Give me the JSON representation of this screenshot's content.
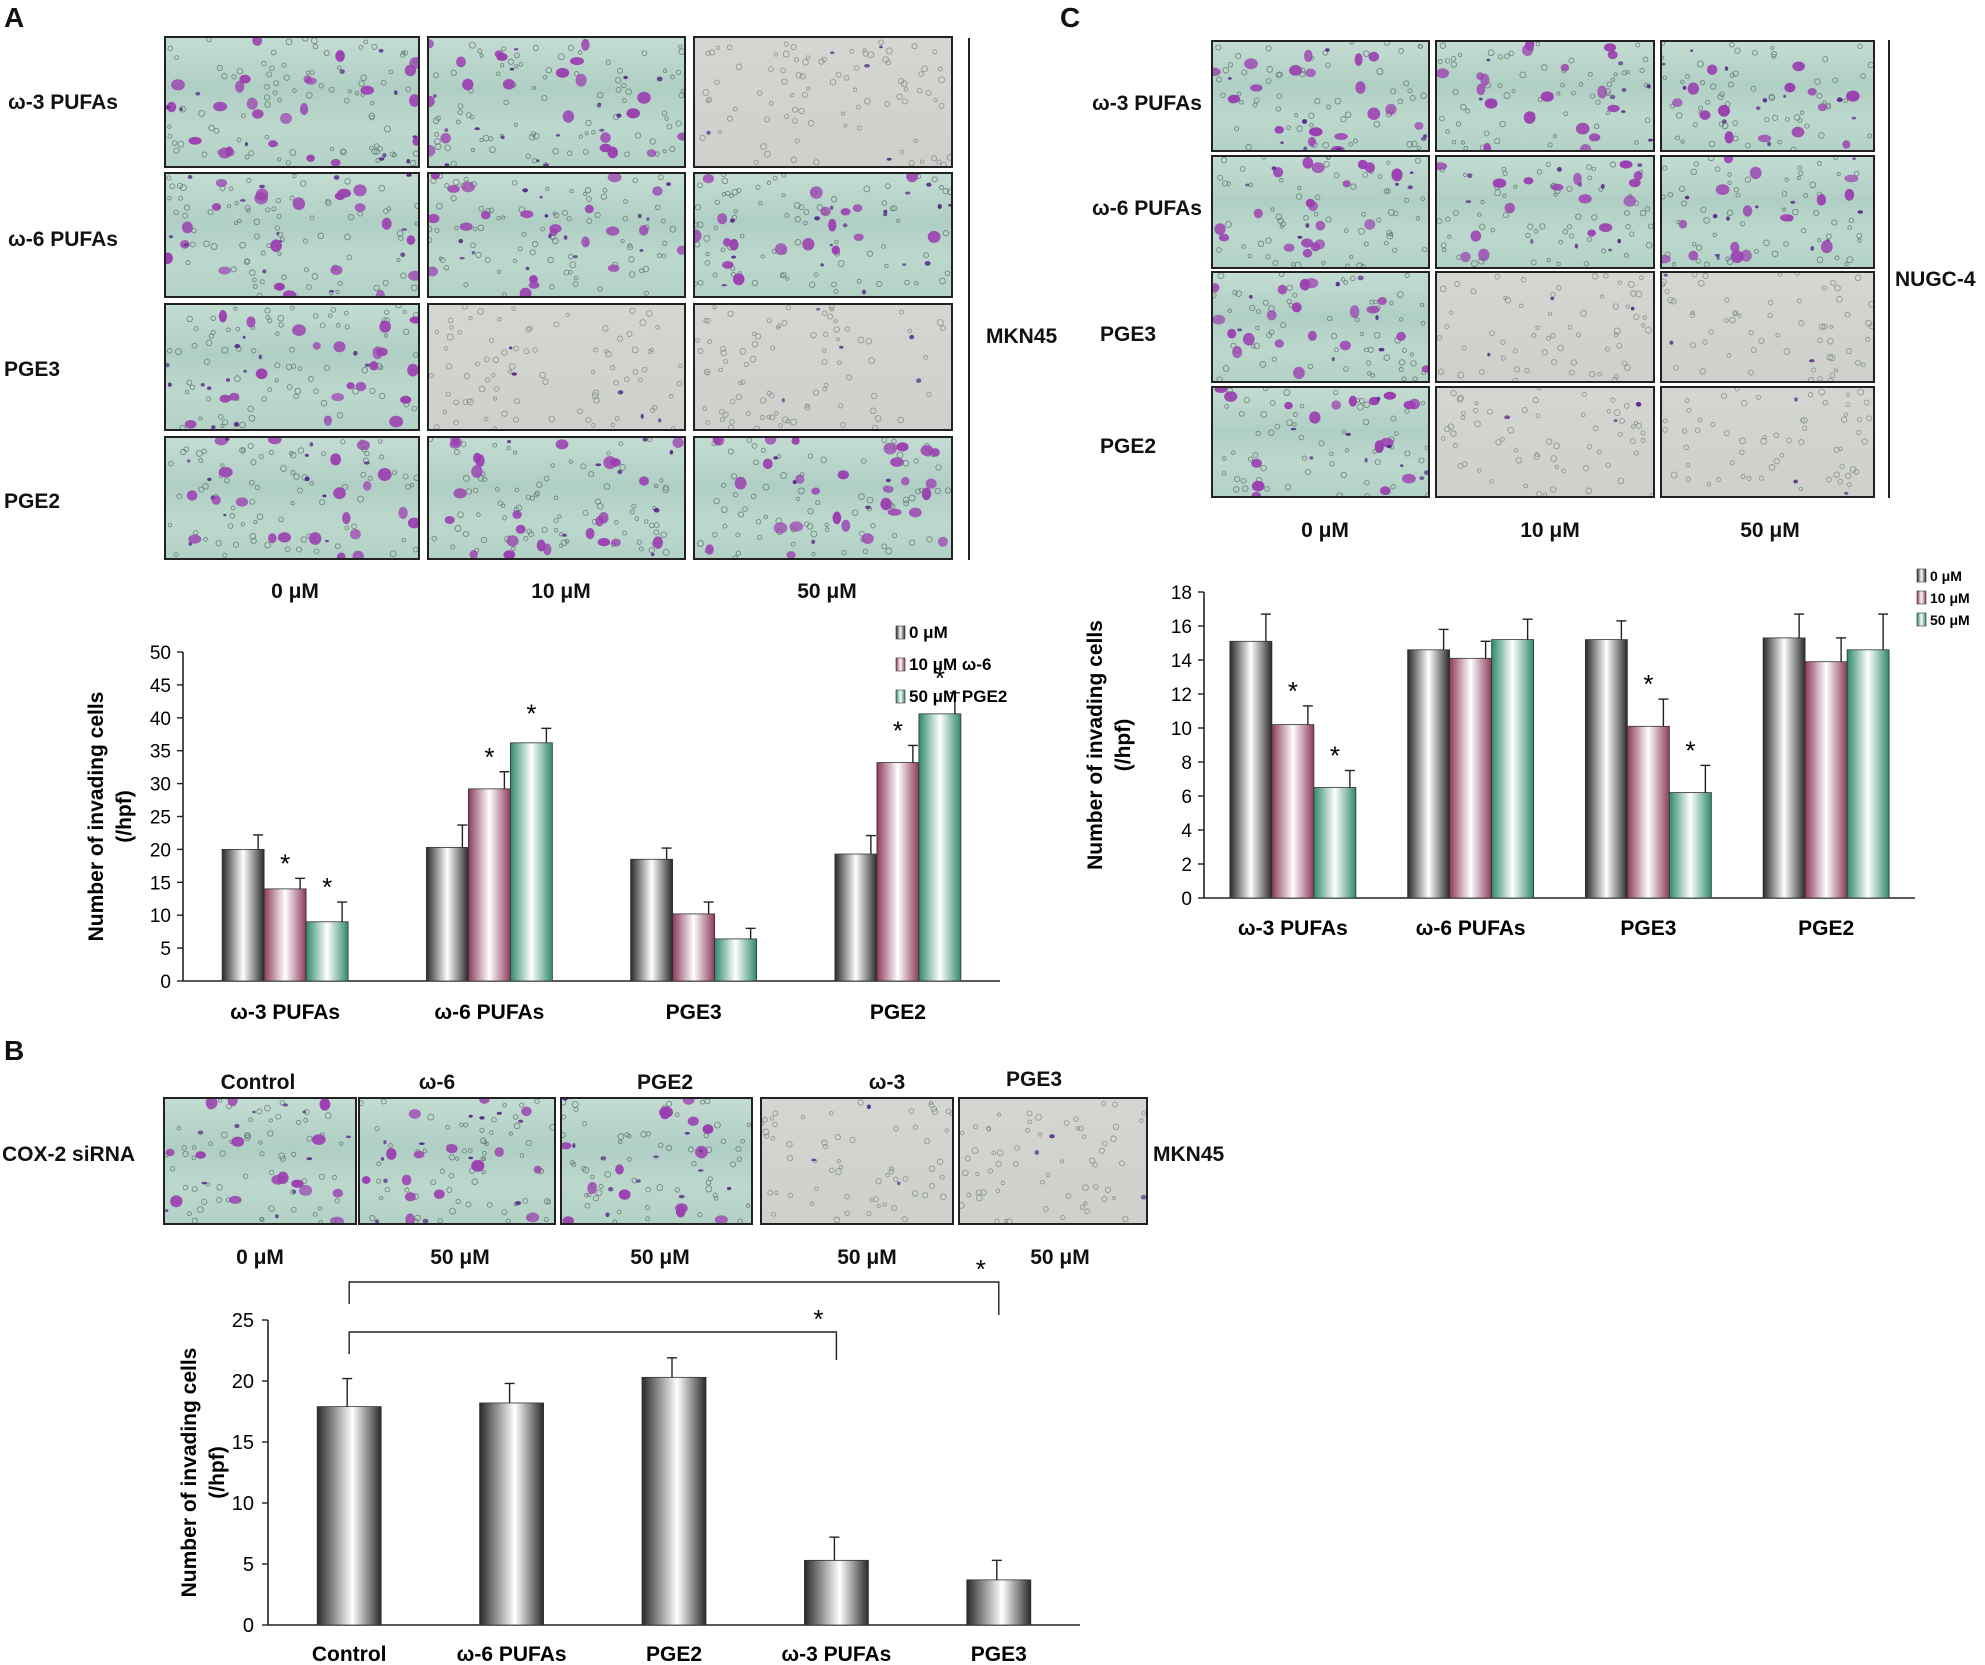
{
  "panels": {
    "A": {
      "letter": "A",
      "row_labels": [
        "ω-3 PUFAs",
        "ω-6 PUFAs",
        "PGE3",
        "PGE2"
      ],
      "col_labels": [
        "0 μM",
        "10 μM",
        "50 μM"
      ],
      "cell_line": "MKN45",
      "staining_levels": [
        [
          2,
          2,
          0
        ],
        [
          2,
          2,
          2
        ],
        [
          2,
          0,
          0
        ],
        [
          2,
          2,
          2
        ]
      ]
    },
    "B": {
      "letter": "B",
      "row_label": "COX-2 siRNA",
      "top_labels": [
        "Control",
        "ω-6",
        "PGE2",
        "ω-3",
        "PGE3"
      ],
      "bottom_labels": [
        "0 μM",
        "50 μM",
        "50 μM",
        "50 μM",
        "50 μM"
      ],
      "cell_line": "MKN45",
      "staining_levels": [
        2,
        2,
        2,
        0,
        0
      ]
    },
    "C": {
      "letter": "C",
      "row_labels": [
        "ω-3 PUFAs",
        "ω-6 PUFAs",
        "PGE3",
        "PGE2"
      ],
      "col_labels": [
        "0 μM",
        "10 μM",
        "50 μM"
      ],
      "cell_line": "NUGC-4",
      "staining_levels": [
        [
          2,
          2,
          2
        ],
        [
          2,
          2,
          2
        ],
        [
          2,
          0,
          0
        ],
        [
          2,
          0,
          0
        ]
      ]
    }
  },
  "chart_data": [
    {
      "id": "A",
      "type": "bar",
      "categories": [
        "ω-3 PUFAs",
        "ω-6 PUFAs",
        "PGE3",
        "PGE2"
      ],
      "series": [
        {
          "name": "0 μM",
          "values": [
            20,
            20.3,
            18.5,
            19.3
          ],
          "errors": [
            2.2,
            3.4,
            1.7,
            2.8
          ],
          "color": "#2a2a2a"
        },
        {
          "name": "10 μM ω-6",
          "values": [
            14,
            29.2,
            10.2,
            33.2
          ],
          "errors": [
            1.6,
            2.6,
            1.8,
            2.6
          ],
          "color": "#8c3a5c"
        },
        {
          "name": "50 μM PGE2",
          "values": [
            9,
            36.2,
            6.4,
            40.6
          ],
          "errors": [
            3.0,
            2.2,
            1.6,
            3.2
          ],
          "color": "#2f8a6a"
        }
      ],
      "significance": [
        [
          false,
          true,
          true
        ],
        [
          false,
          true,
          true
        ],
        [
          false,
          false,
          false
        ],
        [
          false,
          true,
          true
        ]
      ],
      "star": "*",
      "ylabel": "Number of invading cells\n(/hpf)",
      "ylim": [
        0,
        50
      ],
      "yticks": [
        0,
        5,
        10,
        15,
        20,
        25,
        30,
        35,
        40,
        45,
        50
      ],
      "legend": "top-right"
    },
    {
      "id": "C",
      "type": "bar",
      "categories": [
        "ω-3 PUFAs",
        "ω-6 PUFAs",
        "PGE3",
        "PGE2"
      ],
      "series": [
        {
          "name": "0 μM",
          "values": [
            15.1,
            14.6,
            15.2,
            15.3
          ],
          "errors": [
            1.6,
            1.2,
            1.1,
            1.4
          ],
          "color": "#2a2a2a"
        },
        {
          "name": "10 μM",
          "values": [
            10.2,
            14.1,
            10.1,
            13.9
          ],
          "errors": [
            1.1,
            1.0,
            1.6,
            1.4
          ],
          "color": "#8c3a5c"
        },
        {
          "name": "50 μM",
          "values": [
            6.5,
            15.2,
            6.2,
            14.6
          ],
          "errors": [
            1.0,
            1.2,
            1.6,
            2.1
          ],
          "color": "#2f8a6a"
        }
      ],
      "significance": [
        [
          false,
          true,
          true
        ],
        [
          false,
          false,
          false
        ],
        [
          false,
          true,
          true
        ],
        [
          false,
          false,
          false
        ]
      ],
      "star": "*",
      "ylabel": "Number of invading cells\n(/hpf)",
      "ylim": [
        0,
        18
      ],
      "yticks": [
        0,
        2,
        4,
        6,
        8,
        10,
        12,
        14,
        16,
        18
      ],
      "legend": "top-right"
    },
    {
      "id": "B",
      "type": "bar",
      "categories": [
        "Control",
        "ω-6 PUFAs",
        "PGE2",
        "ω-3 PUFAs",
        "PGE3"
      ],
      "values": [
        17.9,
        18.2,
        20.3,
        5.3,
        3.7
      ],
      "errors": [
        2.3,
        1.6,
        1.6,
        1.9,
        1.6
      ],
      "color": "#2a2a2a",
      "comparisons": [
        {
          "from": 0,
          "to": 3,
          "label": "*"
        },
        {
          "from": 0,
          "to": 4,
          "label": "*"
        }
      ],
      "ylabel": "Number of invading cells\n(/hpf)",
      "ylim": [
        0,
        25
      ],
      "yticks": [
        0,
        5,
        10,
        15,
        20,
        25
      ]
    }
  ]
}
